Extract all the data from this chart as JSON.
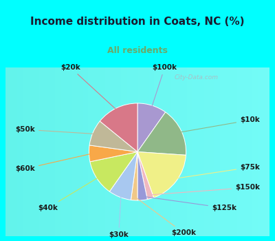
{
  "title": "Income distribution in Coats, NC (%)",
  "subtitle": "All residents",
  "title_color": "#1a1a2e",
  "subtitle_color": "#6aaa6a",
  "bg_cyan": "#00ffff",
  "bg_chart_color": "#e0f0e8",
  "watermark": "City-Data.com",
  "slices": [
    {
      "label": "$100k",
      "value": 9,
      "color": "#a898d0"
    },
    {
      "label": "$10k",
      "value": 15,
      "color": "#90b888"
    },
    {
      "label": "$75k",
      "value": 17,
      "color": "#f0f088"
    },
    {
      "label": "$150k",
      "value": 2,
      "color": "#f0b8c0"
    },
    {
      "label": "$125k",
      "value": 3,
      "color": "#9898d8"
    },
    {
      "label": "$200k",
      "value": 2,
      "color": "#f0c888"
    },
    {
      "label": "$30k",
      "value": 7,
      "color": "#a8c8f0"
    },
    {
      "label": "$40k",
      "value": 11,
      "color": "#c8e860"
    },
    {
      "label": "$60k",
      "value": 5,
      "color": "#f8a848"
    },
    {
      "label": "$50k",
      "value": 8,
      "color": "#c0b898"
    },
    {
      "label": "$20k",
      "value": 13,
      "color": "#d87888"
    }
  ],
  "label_fontsize": 7.5,
  "label_color": "#1a1a1a",
  "title_fontsize": 11,
  "subtitle_fontsize": 9
}
